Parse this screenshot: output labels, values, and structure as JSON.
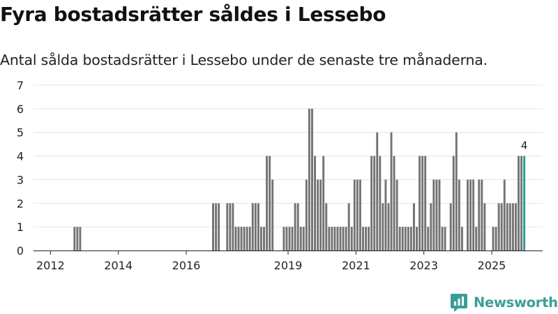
{
  "title": "Fyra bostadsrätter såldes i Lessebo",
  "subtitle": "Antal sålda bostadsrätter i Lessebo under de senaste tre månaderna.",
  "brand": {
    "name": "Newsworthy",
    "logo_icon": "newsworthy-logo-icon",
    "color": "#3a9e97"
  },
  "colors": {
    "bar": "#737373",
    "highlight": "#2a9d8f",
    "grid": "#e3e3e3",
    "axis": "#222222",
    "text": "#222222"
  },
  "chart_data": {
    "type": "bar",
    "title": "Fyra bostadsrätter såldes i Lessebo",
    "subtitle": "Antal sålda bostadsrätter i Lessebo under de senaste tre månaderna.",
    "xlabel": "",
    "ylabel": "",
    "ylim": [
      0,
      7
    ],
    "yticks": [
      "0",
      "1",
      "2",
      "3",
      "4",
      "5",
      "6",
      "7"
    ],
    "x_range": [
      2011.5,
      2026.5
    ],
    "xticks": [
      {
        "year": 2012,
        "label": "2012"
      },
      {
        "year": 2014,
        "label": "2014"
      },
      {
        "year": 2016,
        "label": "2016"
      },
      {
        "year": 2019,
        "label": "2019"
      },
      {
        "year": 2021,
        "label": "2021"
      },
      {
        "year": 2023,
        "label": "2023"
      },
      {
        "year": 2025,
        "label": "2025"
      }
    ],
    "start": "2012-01",
    "frequency": "monthly",
    "grid": true,
    "highlight_last": true,
    "last_value_label": "4",
    "values": [
      0,
      0,
      0,
      0,
      0,
      0,
      0,
      0,
      1,
      1,
      1,
      0,
      0,
      0,
      0,
      0,
      0,
      0,
      0,
      0,
      0,
      0,
      0,
      0,
      0,
      0,
      0,
      0,
      0,
      0,
      0,
      0,
      0,
      0,
      0,
      0,
      0,
      0,
      0,
      0,
      0,
      0,
      0,
      0,
      0,
      0,
      0,
      0,
      0,
      0,
      0,
      0,
      0,
      0,
      0,
      0,
      0,
      2,
      2,
      2,
      0,
      0,
      2,
      2,
      2,
      1,
      1,
      1,
      1,
      1,
      1,
      2,
      2,
      2,
      1,
      1,
      4,
      4,
      3,
      0,
      0,
      0,
      1,
      1,
      1,
      1,
      2,
      2,
      1,
      1,
      3,
      6,
      6,
      4,
      3,
      3,
      4,
      2,
      1,
      1,
      1,
      1,
      1,
      1,
      1,
      2,
      1,
      3,
      3,
      3,
      1,
      1,
      1,
      4,
      4,
      5,
      4,
      2,
      3,
      2,
      5,
      4,
      3,
      1,
      1,
      1,
      1,
      1,
      2,
      1,
      4,
      4,
      4,
      1,
      2,
      3,
      3,
      3,
      1,
      1,
      0,
      2,
      4,
      5,
      3,
      1,
      0,
      3,
      3,
      3,
      1,
      3,
      3,
      2,
      0,
      0,
      1,
      1,
      2,
      2,
      3,
      2,
      2,
      2,
      2,
      4,
      4,
      4
    ]
  }
}
